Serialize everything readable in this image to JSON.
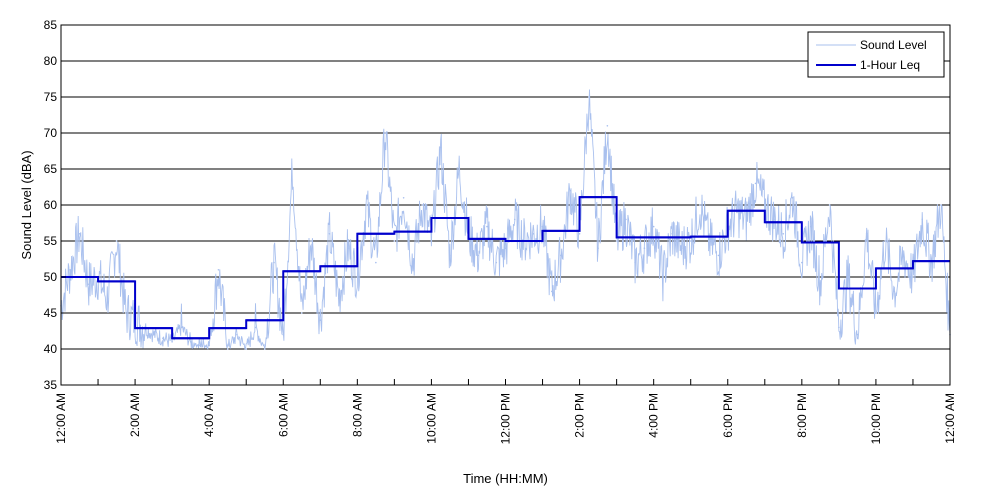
{
  "chart_data": {
    "type": "line",
    "xlabel": "Time (HH:MM)",
    "ylabel": "Sound Level (dBA)",
    "ylim": [
      35,
      85
    ],
    "xlim_hours": [
      0,
      24
    ],
    "y_ticks": [
      35,
      40,
      45,
      50,
      55,
      60,
      65,
      70,
      75,
      80,
      85
    ],
    "x_tick_hours": [
      0,
      2,
      4,
      6,
      8,
      10,
      12,
      14,
      16,
      18,
      20,
      22,
      24
    ],
    "x_tick_labels": [
      "12:00 AM",
      "2:00 AM",
      "4:00 AM",
      "6:00 AM",
      "8:00 AM",
      "10:00 AM",
      "12:00 PM",
      "2:00 PM",
      "4:00 PM",
      "6:00 PM",
      "8:00 PM",
      "10:00 PM",
      "12:00 AM"
    ],
    "grid": "horizontal",
    "legend_position": "top-right",
    "series": [
      {
        "name": "Sound Level",
        "color": "#a9c0ee",
        "hours": [
          0,
          0.25,
          0.5,
          0.75,
          1,
          1.25,
          1.5,
          1.75,
          2,
          2.25,
          2.5,
          2.75,
          3,
          3.25,
          3.5,
          3.75,
          4,
          4.25,
          4.5,
          4.75,
          5,
          5.25,
          5.5,
          5.75,
          6,
          6.25,
          6.5,
          6.75,
          7,
          7.25,
          7.5,
          7.75,
          8,
          8.25,
          8.5,
          8.75,
          9,
          9.25,
          9.5,
          9.75,
          10,
          10.25,
          10.5,
          10.75,
          11,
          11.25,
          11.5,
          11.75,
          12,
          12.25,
          12.5,
          12.75,
          13,
          13.25,
          13.5,
          13.75,
          14,
          14.25,
          14.5,
          14.75,
          15,
          15.25,
          15.5,
          15.75,
          16,
          16.25,
          16.5,
          16.75,
          17,
          17.25,
          17.5,
          17.75,
          18,
          18.25,
          18.5,
          18.75,
          19,
          19.25,
          19.5,
          19.75,
          20,
          20.25,
          20.5,
          20.75,
          21,
          21.25,
          21.5,
          21.75,
          22,
          22.25,
          22.5,
          22.75,
          23,
          23.25,
          23.5,
          23.75,
          24
        ],
        "values": [
          46,
          51,
          56,
          49,
          50,
          47,
          55,
          45,
          44,
          43,
          42,
          41.5,
          41,
          43,
          41,
          40.5,
          40.5,
          51,
          40,
          42,
          40,
          43,
          40,
          52,
          42,
          65,
          45,
          55,
          44,
          56,
          47,
          54,
          50,
          60,
          52,
          70,
          55,
          61,
          52,
          60,
          55,
          68,
          53,
          65,
          56,
          53,
          57,
          52,
          54,
          58,
          55,
          56,
          57,
          48,
          53,
          62,
          56,
          75,
          54,
          71,
          55,
          58,
          52,
          54,
          57,
          50,
          56,
          54,
          55,
          60,
          55,
          53,
          57,
          59,
          58,
          63,
          60,
          58,
          56,
          61,
          52,
          57,
          49,
          60,
          43,
          50,
          42,
          56,
          45,
          55,
          48,
          53,
          50,
          58,
          52,
          60,
          42
        ]
      },
      {
        "name": "1-Hour Leq",
        "color": "#0000cc",
        "hours": [
          0,
          1,
          2,
          3,
          4,
          5,
          6,
          7,
          8,
          9,
          10,
          11,
          12,
          13,
          14,
          15,
          16,
          17,
          18,
          19,
          20,
          21,
          22,
          23
        ],
        "values": [
          50.0,
          49.4,
          42.9,
          41.5,
          42.9,
          44.0,
          50.8,
          51.5,
          56.0,
          56.3,
          58.2,
          55.3,
          55.0,
          56.4,
          61.1,
          55.5,
          55.5,
          55.6,
          59.2,
          57.6,
          54.8,
          48.4,
          51.2,
          52.2
        ]
      }
    ]
  }
}
